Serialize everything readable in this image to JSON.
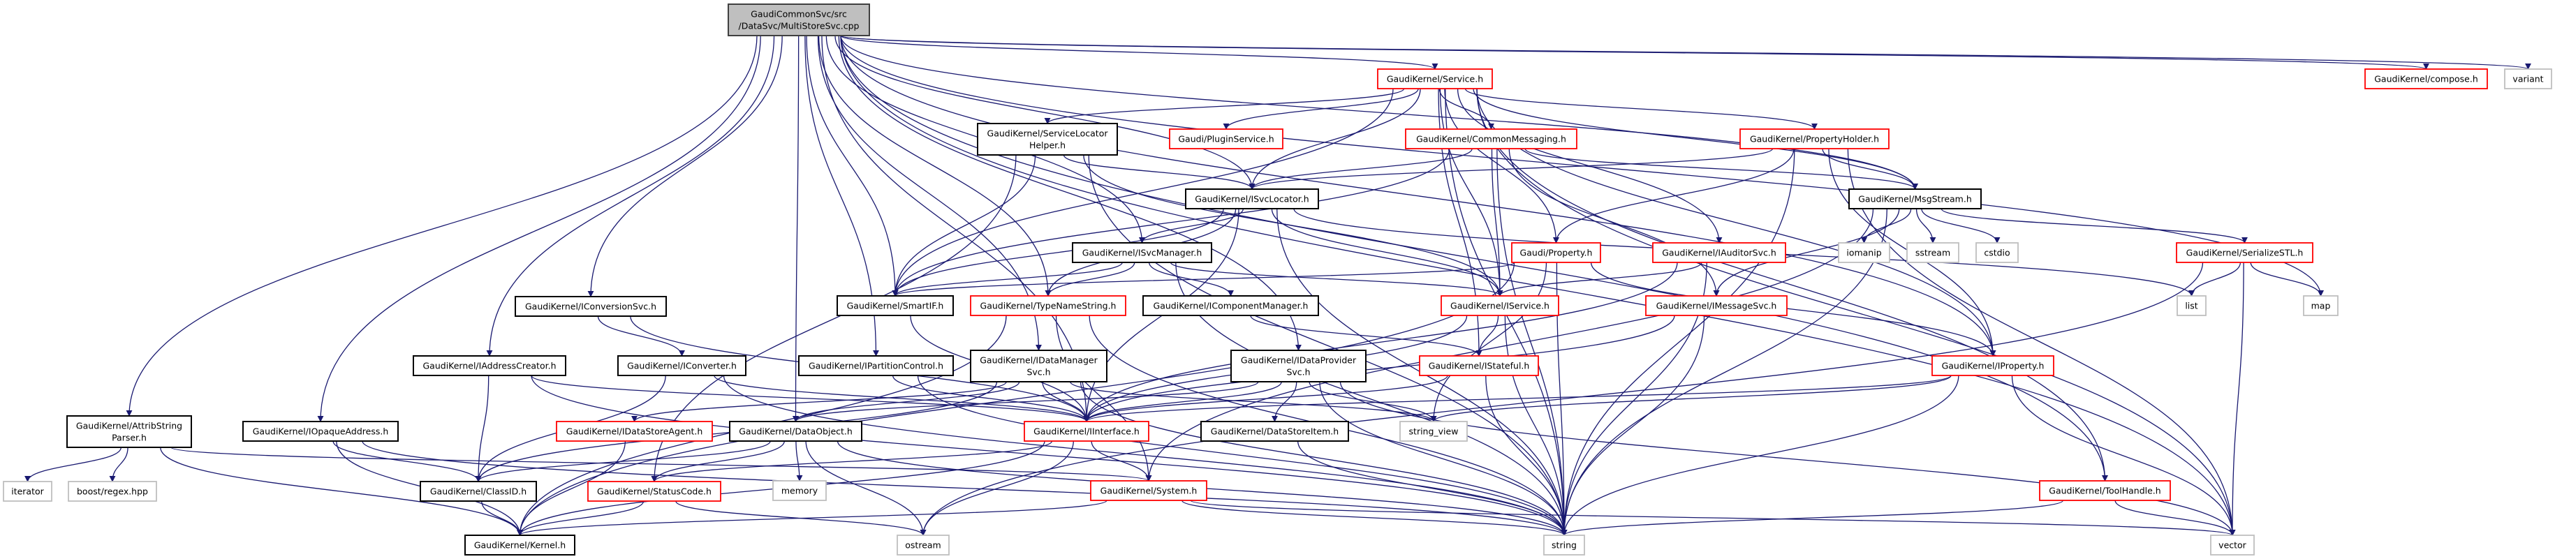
{
  "graph": {
    "colors": {
      "edge": "#191970",
      "root_fill": "#bfbfbf",
      "root_border": "#404040",
      "internal_border": "#000000",
      "incomplete_border": "#ff0000",
      "system_border": "#bfbfbf"
    },
    "nodes": [
      {
        "id": "root",
        "style": "root",
        "lines": [
          "GaudiCommonSvc/src",
          "/DataSvc/MultiStoreSvc.cpp"
        ]
      },
      {
        "id": "service",
        "style": "red",
        "lines": [
          "GaudiKernel/Service.h"
        ]
      },
      {
        "id": "compose",
        "style": "red",
        "lines": [
          "GaudiKernel/compose.h"
        ]
      },
      {
        "id": "variant",
        "style": "system",
        "lines": [
          "variant"
        ]
      },
      {
        "id": "slh",
        "style": "internal",
        "lines": [
          "GaudiKernel/ServiceLocator",
          "Helper.h"
        ]
      },
      {
        "id": "plugin",
        "style": "red",
        "lines": [
          "Gaudi/PluginService.h"
        ]
      },
      {
        "id": "cmsg",
        "style": "red",
        "lines": [
          "GaudiKernel/CommonMessaging.h"
        ]
      },
      {
        "id": "pholder",
        "style": "red",
        "lines": [
          "GaudiKernel/PropertyHolder.h"
        ]
      },
      {
        "id": "isvcloc",
        "style": "internal",
        "lines": [
          "GaudiKernel/ISvcLocator.h"
        ]
      },
      {
        "id": "msgstream",
        "style": "internal",
        "lines": [
          "GaudiKernel/MsgStream.h"
        ]
      },
      {
        "id": "isvcmgr",
        "style": "internal",
        "lines": [
          "GaudiKernel/ISvcManager.h"
        ]
      },
      {
        "id": "property",
        "style": "red",
        "lines": [
          "Gaudi/Property.h"
        ]
      },
      {
        "id": "iauditor",
        "style": "red",
        "lines": [
          "GaudiKernel/IAuditorSvc.h"
        ]
      },
      {
        "id": "iomanip",
        "style": "system",
        "lines": [
          "iomanip"
        ]
      },
      {
        "id": "sstream",
        "style": "system",
        "lines": [
          "sstream"
        ]
      },
      {
        "id": "cstdio",
        "style": "system",
        "lines": [
          "cstdio"
        ]
      },
      {
        "id": "serial",
        "style": "red",
        "lines": [
          "GaudiKernel/SerializeSTL.h"
        ]
      },
      {
        "id": "iconvsvc",
        "style": "internal",
        "lines": [
          "GaudiKernel/IConversionSvc.h"
        ]
      },
      {
        "id": "smartif",
        "style": "internal",
        "lines": [
          "GaudiKernel/SmartIF.h"
        ]
      },
      {
        "id": "typename",
        "style": "red",
        "lines": [
          "GaudiKernel/TypeNameString.h"
        ]
      },
      {
        "id": "icompmgr",
        "style": "internal",
        "lines": [
          "GaudiKernel/IComponentManager.h"
        ]
      },
      {
        "id": "iservice",
        "style": "red",
        "lines": [
          "GaudiKernel/IService.h"
        ]
      },
      {
        "id": "imsgsvc",
        "style": "red",
        "lines": [
          "GaudiKernel/IMessageSvc.h"
        ]
      },
      {
        "id": "list",
        "style": "system",
        "lines": [
          "list"
        ]
      },
      {
        "id": "map",
        "style": "system",
        "lines": [
          "map"
        ]
      },
      {
        "id": "iaddr",
        "style": "internal",
        "lines": [
          "GaudiKernel/IAddressCreator.h"
        ]
      },
      {
        "id": "iconverter",
        "style": "internal",
        "lines": [
          "GaudiKernel/IConverter.h"
        ]
      },
      {
        "id": "ipartition",
        "style": "internal",
        "lines": [
          "GaudiKernel/IPartitionControl.h"
        ]
      },
      {
        "id": "idatamgr",
        "style": "internal",
        "lines": [
          "GaudiKernel/IDataManager",
          "Svc.h"
        ]
      },
      {
        "id": "idataprov",
        "style": "internal",
        "lines": [
          "GaudiKernel/IDataProvider",
          "Svc.h"
        ]
      },
      {
        "id": "istateful",
        "style": "red",
        "lines": [
          "GaudiKernel/IStateful.h"
        ]
      },
      {
        "id": "iproperty",
        "style": "red",
        "lines": [
          "GaudiKernel/IProperty.h"
        ]
      },
      {
        "id": "attrib",
        "style": "internal",
        "lines": [
          "GaudiKernel/AttribString",
          "Parser.h"
        ]
      },
      {
        "id": "iopaque",
        "style": "internal",
        "lines": [
          "GaudiKernel/IOpaqueAddress.h"
        ]
      },
      {
        "id": "idsagent",
        "style": "red",
        "lines": [
          "GaudiKernel/IDataStoreAgent.h"
        ]
      },
      {
        "id": "dataobject",
        "style": "internal",
        "lines": [
          "GaudiKernel/DataObject.h"
        ]
      },
      {
        "id": "iinterface",
        "style": "red",
        "lines": [
          "GaudiKernel/IInterface.h"
        ]
      },
      {
        "id": "dsitem",
        "style": "internal",
        "lines": [
          "GaudiKernel/DataStoreItem.h"
        ]
      },
      {
        "id": "string_view",
        "style": "system",
        "lines": [
          "string_view"
        ]
      },
      {
        "id": "iterator",
        "style": "system",
        "lines": [
          "iterator"
        ]
      },
      {
        "id": "boost",
        "style": "system",
        "lines": [
          "boost/regex.hpp"
        ]
      },
      {
        "id": "classid",
        "style": "internal",
        "lines": [
          "GaudiKernel/ClassID.h"
        ]
      },
      {
        "id": "statuscode",
        "style": "red",
        "lines": [
          "GaudiKernel/StatusCode.h"
        ]
      },
      {
        "id": "memory",
        "style": "system",
        "lines": [
          "memory"
        ]
      },
      {
        "id": "system",
        "style": "red",
        "lines": [
          "GaudiKernel/System.h"
        ]
      },
      {
        "id": "toolhandle",
        "style": "red",
        "lines": [
          "GaudiKernel/ToolHandle.h"
        ]
      },
      {
        "id": "kernel",
        "style": "internal",
        "lines": [
          "GaudiKernel/Kernel.h"
        ]
      },
      {
        "id": "ostream",
        "style": "system",
        "lines": [
          "ostream"
        ]
      },
      {
        "id": "string",
        "style": "system",
        "lines": [
          "string"
        ]
      },
      {
        "id": "vector",
        "style": "system",
        "lines": [
          "vector"
        ]
      }
    ],
    "edges": [
      [
        "root",
        "attrib"
      ],
      [
        "root",
        "iopaque"
      ],
      [
        "root",
        "dataobject"
      ],
      [
        "root",
        "iaddr"
      ],
      [
        "root",
        "iconvsvc"
      ],
      [
        "root",
        "ipartition"
      ],
      [
        "root",
        "idatamgr"
      ],
      [
        "root",
        "iinterface"
      ],
      [
        "root",
        "smartif"
      ],
      [
        "root",
        "typename"
      ],
      [
        "root",
        "isvcmgr"
      ],
      [
        "root",
        "isvcloc"
      ],
      [
        "root",
        "service"
      ],
      [
        "root",
        "idataprov"
      ],
      [
        "root",
        "msgstream"
      ],
      [
        "root",
        "iproperty"
      ],
      [
        "root",
        "toolhandle"
      ],
      [
        "root",
        "map"
      ],
      [
        "root",
        "vector"
      ],
      [
        "root",
        "compose"
      ],
      [
        "root",
        "variant"
      ],
      [
        "service",
        "slh"
      ],
      [
        "service",
        "plugin"
      ],
      [
        "service",
        "cmsg"
      ],
      [
        "service",
        "pholder"
      ],
      [
        "service",
        "isvcloc"
      ],
      [
        "service",
        "smartif"
      ],
      [
        "service",
        "property"
      ],
      [
        "service",
        "iauditor"
      ],
      [
        "service",
        "iservice"
      ],
      [
        "service",
        "istateful"
      ],
      [
        "service",
        "iproperty"
      ],
      [
        "service",
        "msgstream"
      ],
      [
        "service",
        "vector"
      ],
      [
        "service",
        "string"
      ],
      [
        "service",
        "toolhandle"
      ],
      [
        "slh",
        "isvcloc"
      ],
      [
        "slh",
        "smartif"
      ],
      [
        "slh",
        "iservice"
      ],
      [
        "slh",
        "string"
      ],
      [
        "slh",
        "statuscode"
      ],
      [
        "cmsg",
        "isvcloc"
      ],
      [
        "cmsg",
        "iservice"
      ],
      [
        "cmsg",
        "msgstream"
      ],
      [
        "cmsg",
        "imsgsvc"
      ],
      [
        "cmsg",
        "string"
      ],
      [
        "cmsg",
        "smartif"
      ],
      [
        "pholder",
        "isvcloc"
      ],
      [
        "pholder",
        "msgstream"
      ],
      [
        "pholder",
        "property"
      ],
      [
        "pholder",
        "iproperty"
      ],
      [
        "pholder",
        "string"
      ],
      [
        "pholder",
        "vector"
      ],
      [
        "isvcloc",
        "isvcmgr"
      ],
      [
        "isvcloc",
        "iinterface"
      ],
      [
        "isvcloc",
        "smartif"
      ],
      [
        "isvcloc",
        "typename"
      ],
      [
        "isvcloc",
        "iservice"
      ],
      [
        "isvcloc",
        "string"
      ],
      [
        "isvcloc",
        "list"
      ],
      [
        "isvcmgr",
        "smartif"
      ],
      [
        "isvcmgr",
        "typename"
      ],
      [
        "isvcmgr",
        "icompmgr"
      ],
      [
        "isvcmgr",
        "iservice"
      ],
      [
        "isvcmgr",
        "string"
      ],
      [
        "icompmgr",
        "istateful"
      ],
      [
        "property",
        "smartif"
      ],
      [
        "property",
        "iproperty"
      ],
      [
        "property",
        "string"
      ],
      [
        "property",
        "string_view"
      ],
      [
        "property",
        "kernel"
      ],
      [
        "iauditor",
        "iservice"
      ],
      [
        "iauditor",
        "string"
      ],
      [
        "iauditor",
        "iinterface"
      ],
      [
        "imsgsvc",
        "iinterface"
      ],
      [
        "imsgsvc",
        "string"
      ],
      [
        "iservice",
        "istateful"
      ],
      [
        "iservice",
        "iinterface"
      ],
      [
        "iservice",
        "string"
      ],
      [
        "istateful",
        "iinterface"
      ],
      [
        "istateful",
        "string"
      ],
      [
        "msgstream",
        "imsgsvc"
      ],
      [
        "msgstream",
        "serial"
      ],
      [
        "msgstream",
        "iomanip"
      ],
      [
        "msgstream",
        "sstream"
      ],
      [
        "msgstream",
        "cstdio"
      ],
      [
        "msgstream",
        "string"
      ],
      [
        "msgstream",
        "system"
      ],
      [
        "serial",
        "list"
      ],
      [
        "serial",
        "map"
      ],
      [
        "serial",
        "vector"
      ],
      [
        "serial",
        "ostream"
      ],
      [
        "iproperty",
        "iinterface"
      ],
      [
        "iproperty",
        "string"
      ],
      [
        "iproperty",
        "string_view"
      ],
      [
        "iproperty",
        "vector"
      ],
      [
        "toolhandle",
        "string"
      ],
      [
        "toolhandle",
        "vector"
      ],
      [
        "typename",
        "string"
      ],
      [
        "typename",
        "system"
      ],
      [
        "typename",
        "kernel"
      ],
      [
        "smartif",
        "iinterface"
      ],
      [
        "iconvsvc",
        "iconverter"
      ],
      [
        "iconvsvc",
        "iinterface"
      ],
      [
        "iconverter",
        "classid"
      ],
      [
        "iconverter",
        "iinterface"
      ],
      [
        "iconverter",
        "string"
      ],
      [
        "iaddr",
        "classid"
      ],
      [
        "iaddr",
        "iinterface"
      ],
      [
        "iaddr",
        "string"
      ],
      [
        "ipartition",
        "iinterface"
      ],
      [
        "ipartition",
        "string"
      ],
      [
        "idatamgr",
        "iinterface"
      ],
      [
        "idatamgr",
        "dataobject"
      ],
      [
        "idatamgr",
        "classid"
      ],
      [
        "idatamgr",
        "idsagent"
      ],
      [
        "idatamgr",
        "string"
      ],
      [
        "idatamgr",
        "string_view"
      ],
      [
        "idataprov",
        "iinterface"
      ],
      [
        "idataprov",
        "dataobject"
      ],
      [
        "idataprov",
        "dsitem"
      ],
      [
        "idataprov",
        "string"
      ],
      [
        "idataprov",
        "string_view"
      ],
      [
        "idataprov",
        "vector"
      ],
      [
        "idsagent",
        "kernel"
      ],
      [
        "dataobject",
        "classid"
      ],
      [
        "dataobject",
        "statuscode"
      ],
      [
        "dataobject",
        "memory"
      ],
      [
        "dataobject",
        "ostream"
      ],
      [
        "dataobject",
        "string"
      ],
      [
        "iinterface",
        "statuscode"
      ],
      [
        "iinterface",
        "system"
      ],
      [
        "iinterface",
        "ostream"
      ],
      [
        "iinterface",
        "kernel"
      ],
      [
        "system",
        "string"
      ],
      [
        "system",
        "vector"
      ],
      [
        "system",
        "kernel"
      ],
      [
        "statuscode",
        "kernel"
      ],
      [
        "statuscode",
        "ostream"
      ],
      [
        "classid",
        "kernel"
      ],
      [
        "attrib",
        "iterator"
      ],
      [
        "attrib",
        "boost"
      ],
      [
        "attrib",
        "kernel"
      ],
      [
        "attrib",
        "system"
      ],
      [
        "iopaque",
        "classid"
      ],
      [
        "iopaque",
        "kernel"
      ],
      [
        "iopaque",
        "string"
      ],
      [
        "dsitem",
        "string"
      ]
    ]
  }
}
